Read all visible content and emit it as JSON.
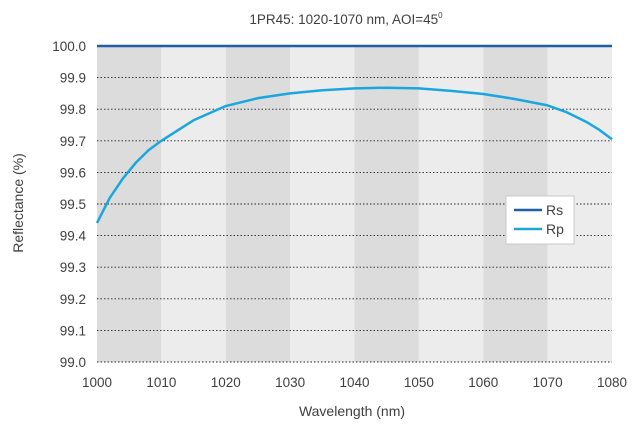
{
  "chart_data": {
    "type": "line",
    "title": "1PR45: 1020-1070 nm, AOI=45",
    "title_superscript": "0",
    "xlabel": "Wavelength (nm)",
    "ylabel": "Reflectance (%)",
    "xlim": [
      1000,
      1080
    ],
    "ylim": [
      99.0,
      100.0
    ],
    "x_ticks": [
      1000,
      1010,
      1020,
      1030,
      1040,
      1050,
      1060,
      1070,
      1080
    ],
    "x_tick_labels": [
      "1000",
      "1010",
      "1020",
      "1030",
      "1040",
      "1050",
      "1060",
      "1070",
      "1080"
    ],
    "y_ticks": [
      99.0,
      99.1,
      99.2,
      99.3,
      99.4,
      99.5,
      99.6,
      99.7,
      99.8,
      99.9,
      100.0
    ],
    "y_tick_labels": [
      "99.0",
      "99.1",
      "99.2",
      "99.3",
      "99.4",
      "99.5",
      "99.6",
      "99.7",
      "99.8",
      "99.9",
      "100.0"
    ],
    "grid": "horizontal dotted",
    "background": "alternating vertical bands",
    "band_colors": [
      "#dcdcdc",
      "#ececec"
    ],
    "legend_position": "right",
    "series": [
      {
        "name": "Rs",
        "color": "#1f5fa6",
        "x": [
          1000,
          1010,
          1020,
          1030,
          1040,
          1050,
          1060,
          1070,
          1080
        ],
        "y": [
          100.0,
          100.0,
          100.0,
          100.0,
          100.0,
          100.0,
          100.0,
          100.0,
          100.0
        ]
      },
      {
        "name": "Rp",
        "color": "#1aa7de",
        "x": [
          1000,
          1002,
          1004,
          1006,
          1008,
          1010,
          1015,
          1020,
          1025,
          1030,
          1035,
          1040,
          1045,
          1050,
          1055,
          1060,
          1065,
          1070,
          1073,
          1076,
          1078,
          1080
        ],
        "y": [
          99.44,
          99.52,
          99.58,
          99.63,
          99.67,
          99.7,
          99.765,
          99.81,
          99.835,
          99.85,
          99.86,
          99.866,
          99.868,
          99.866,
          99.858,
          99.848,
          99.832,
          99.812,
          99.79,
          99.76,
          99.735,
          99.705
        ]
      }
    ]
  }
}
